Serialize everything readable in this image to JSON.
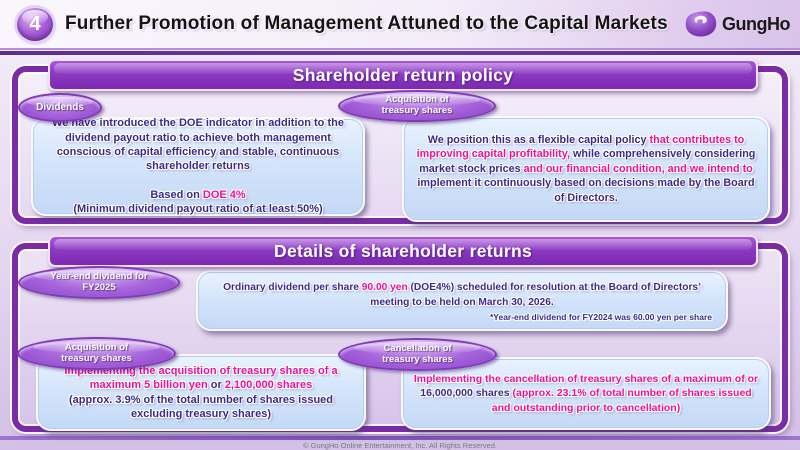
{
  "header": {
    "slide_number": "4",
    "title": "Further Promotion of Management Attuned to the Capital Markets",
    "logo_text": "GungHo"
  },
  "colors": {
    "frame_purple": "#7b2ba3",
    "banner_purple": "#8c39c2",
    "text_purple": "#3b2a8c",
    "text_pink": "#ee0f9b",
    "box_blue": "#d6e6fb"
  },
  "sections": {
    "policy": {
      "banner": "Shareholder return policy",
      "badges": {
        "dividends": "Dividends",
        "acquisition": "Acquisition of\ntreasury shares"
      },
      "dividends_box_segments": [
        {
          "t": "We have introduced the DOE indicator in addition to the dividend payout ratio to achieve both management conscious of capital efficiency and stable, continuous shareholder returns",
          "c": "purple"
        },
        {
          "t": "\n\nBased on ",
          "c": "purple"
        },
        {
          "t": "DOE 4%",
          "c": "pink"
        },
        {
          "t": "\n(Minimum dividend payout ratio of at least 50%)",
          "c": "purple"
        }
      ],
      "policy_box_segments": [
        {
          "t": "We position this as a flexible capital policy ",
          "c": "purple"
        },
        {
          "t": "that contributes to improving capital profitability, ",
          "c": "pink"
        },
        {
          "t": "while comprehensively considering market stock prices ",
          "c": "purple"
        },
        {
          "t": "and our financial condition, and we intend to ",
          "c": "pink"
        },
        {
          "t": "implement it continuously based on decisions made by the Board of Directors.",
          "c": "purple"
        }
      ]
    },
    "details": {
      "banner": "Details of shareholder returns",
      "badges": {
        "year_end": "Year-end dividend for\nFY2025",
        "acquisition": "Acquisition of\ntreasury shares",
        "cancellation": "Cancellation of\ntreasury shares"
      },
      "dividend_box_segments": [
        {
          "t": "Ordinary dividend per share ",
          "c": "purple"
        },
        {
          "t": "90.00 yen",
          "c": "pink"
        },
        {
          "t": " (DOE4%)  scheduled for resolution at the Board of Directors’ meeting to be held on March 30, 2026.",
          "c": "purple"
        }
      ],
      "dividend_footnote": "*Year-end dividend for FY2024 was 60.00 yen per share",
      "acquisition_box_segments": [
        {
          "t": "Implementing the acquisition of treasury shares of a maximum 5 billion yen ",
          "c": "pink"
        },
        {
          "t": " or ",
          "c": "purple"
        },
        {
          "t": " 2,100,000 shares",
          "c": "pink"
        },
        {
          "t": "\n(approx. 3.9% of the total number of shares issued excluding treasury shares)",
          "c": "purple"
        }
      ],
      "cancellation_box_segments": [
        {
          "t": "Implementing the cancellation of treasury shares of a maximum of  or  ",
          "c": "pink"
        },
        {
          "t": "16,000,000 shares",
          "c": "purple"
        },
        {
          "t": " (approx. 23.1% of total number of shares issued and outstanding prior to cancellation)",
          "c": "pink"
        }
      ]
    }
  },
  "footer": {
    "copyright": "© GungHo Online Entertainment, Inc. All Rights Reserved."
  }
}
